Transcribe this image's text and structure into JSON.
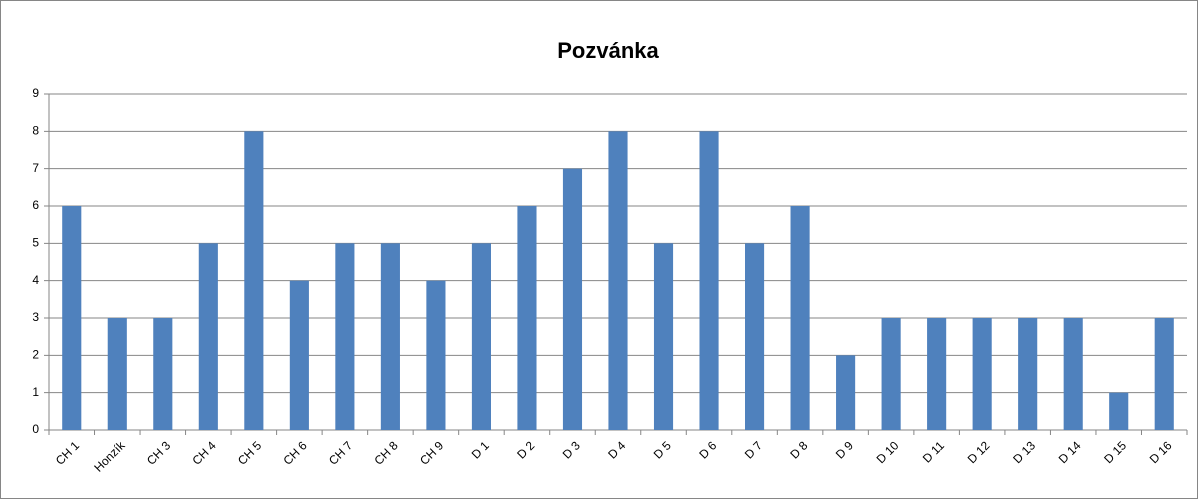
{
  "chart_data": {
    "type": "bar",
    "title": "Pozvánka",
    "categories": [
      "CH 1",
      "Honzík",
      "CH 3",
      "CH 4",
      "CH 5",
      "CH 6",
      "CH 7",
      "CH 8",
      "CH 9",
      "D 1",
      "D 2",
      "D 3",
      "D 4",
      "D 5",
      "D 6",
      "D 7",
      "D 8",
      "D 9",
      "D 10",
      "D 11",
      "D 12",
      "D 13",
      "D 14",
      "D 15",
      "D 16"
    ],
    "values": [
      6,
      3,
      3,
      5,
      8,
      4,
      5,
      5,
      4,
      5,
      6,
      7,
      8,
      5,
      8,
      5,
      6,
      2,
      3,
      3,
      3,
      3,
      3,
      1,
      3
    ],
    "color": "#4f81bd",
    "ylim": [
      0,
      9
    ],
    "yticks": [
      0,
      1,
      2,
      3,
      4,
      5,
      6,
      7,
      8,
      9
    ],
    "grid": true
  }
}
